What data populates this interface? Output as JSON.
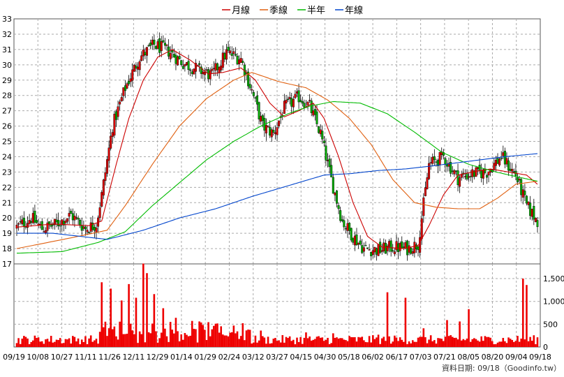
{
  "legend": [
    {
      "name": "月線",
      "color": "#cc0000"
    },
    {
      "name": "季線",
      "color": "#e06010"
    },
    {
      "name": "半年",
      "color": "#00bb00"
    },
    {
      "name": "年線",
      "color": "#0044cc"
    }
  ],
  "footer": "資料日期: 09/18（Goodinfo.tw）",
  "chart_data": [
    {
      "type": "candlestick",
      "ylim": [
        17,
        33
      ],
      "yticks": [
        17,
        18,
        19,
        20,
        21,
        22,
        23,
        24,
        25,
        26,
        27,
        28,
        29,
        30,
        31,
        32,
        33
      ],
      "xticks": [
        "09/19",
        "10/08",
        "10/27",
        "11/11",
        "11/26",
        "12/11",
        "12/29",
        "01/14",
        "01/29",
        "02/24",
        "03/12",
        "03/27",
        "04/15",
        "04/30",
        "05/18",
        "06/02",
        "06/17",
        "07/03",
        "07/21",
        "08/05",
        "08/20",
        "09/04",
        "09/18"
      ],
      "price_keypoints": [
        [
          0,
          19.4
        ],
        [
          8,
          20.0
        ],
        [
          14,
          19.3
        ],
        [
          22,
          19.6
        ],
        [
          30,
          20.2
        ],
        [
          38,
          19.3
        ],
        [
          44,
          19.6
        ],
        [
          47,
          21.5
        ],
        [
          53,
          26.0
        ],
        [
          60,
          28.5
        ],
        [
          68,
          30.5
        ],
        [
          76,
          31.3
        ],
        [
          84,
          30.9
        ],
        [
          92,
          30.1
        ],
        [
          100,
          29.7
        ],
        [
          108,
          29.3
        ],
        [
          116,
          30.8
        ],
        [
          124,
          30.4
        ],
        [
          130,
          28.3
        ],
        [
          136,
          26.0
        ],
        [
          142,
          25.5
        ],
        [
          148,
          27.2
        ],
        [
          156,
          27.9
        ],
        [
          162,
          27.3
        ],
        [
          168,
          25.5
        ],
        [
          174,
          22.5
        ],
        [
          180,
          19.8
        ],
        [
          186,
          18.8
        ],
        [
          192,
          18.0
        ],
        [
          200,
          17.9
        ],
        [
          208,
          18.1
        ],
        [
          216,
          18.0
        ],
        [
          222,
          18.3
        ],
        [
          228,
          23.5
        ],
        [
          236,
          24.0
        ],
        [
          244,
          22.6
        ],
        [
          252,
          22.9
        ],
        [
          260,
          23.0
        ],
        [
          268,
          24.0
        ],
        [
          276,
          22.8
        ],
        [
          282,
          20.8
        ],
        [
          288,
          19.8
        ]
      ],
      "series": [
        {
          "name": "月線",
          "keypoints": [
            [
              0,
              19.4
            ],
            [
              20,
              19.6
            ],
            [
              40,
              19.5
            ],
            [
              47,
              19.8
            ],
            [
              55,
              23.5
            ],
            [
              62,
              26.5
            ],
            [
              70,
              29.0
            ],
            [
              78,
              30.5
            ],
            [
              86,
              31.0
            ],
            [
              96,
              30.3
            ],
            [
              106,
              29.4
            ],
            [
              114,
              29.5
            ],
            [
              124,
              29.8
            ],
            [
              132,
              29.0
            ],
            [
              140,
              27.5
            ],
            [
              148,
              26.6
            ],
            [
              156,
              27.0
            ],
            [
              164,
              27.5
            ],
            [
              170,
              26.5
            ],
            [
              178,
              24.0
            ],
            [
              186,
              21.0
            ],
            [
              194,
              18.8
            ],
            [
              202,
              18.1
            ],
            [
              214,
              18.0
            ],
            [
              222,
              18.2
            ],
            [
              228,
              19.5
            ],
            [
              236,
              21.5
            ],
            [
              244,
              22.8
            ],
            [
              252,
              23.0
            ],
            [
              262,
              23.2
            ],
            [
              272,
              23.0
            ],
            [
              282,
              22.8
            ],
            [
              288,
              22.2
            ]
          ]
        },
        {
          "name": "季線",
          "keypoints": [
            [
              0,
              18.0
            ],
            [
              30,
              18.7
            ],
            [
              50,
              19.2
            ],
            [
              60,
              20.8
            ],
            [
              75,
              23.5
            ],
            [
              90,
              26.0
            ],
            [
              105,
              27.8
            ],
            [
              120,
              29.0
            ],
            [
              130,
              29.5
            ],
            [
              145,
              28.9
            ],
            [
              160,
              28.5
            ],
            [
              172,
              27.7
            ],
            [
              184,
              26.5
            ],
            [
              196,
              24.8
            ],
            [
              208,
              22.5
            ],
            [
              220,
              21.0
            ],
            [
              232,
              20.7
            ],
            [
              244,
              20.6
            ],
            [
              256,
              20.6
            ],
            [
              266,
              21.3
            ],
            [
              276,
              22.2
            ],
            [
              288,
              22.4
            ]
          ]
        },
        {
          "name": "半年",
          "keypoints": [
            [
              0,
              17.7
            ],
            [
              25,
              17.8
            ],
            [
              45,
              18.4
            ],
            [
              60,
              19.1
            ],
            [
              75,
              20.8
            ],
            [
              90,
              22.3
            ],
            [
              105,
              23.8
            ],
            [
              120,
              25.0
            ],
            [
              135,
              26.0
            ],
            [
              150,
              26.8
            ],
            [
              162,
              27.3
            ],
            [
              175,
              27.6
            ],
            [
              190,
              27.5
            ],
            [
              205,
              26.8
            ],
            [
              220,
              25.6
            ],
            [
              235,
              24.3
            ],
            [
              250,
              23.5
            ],
            [
              265,
              23.0
            ],
            [
              280,
              22.6
            ],
            [
              288,
              22.4
            ]
          ]
        },
        {
          "name": "年線",
          "keypoints": [
            [
              0,
              19.0
            ],
            [
              20,
              19.0
            ],
            [
              35,
              18.8
            ],
            [
              50,
              18.6
            ],
            [
              70,
              19.2
            ],
            [
              90,
              20.0
            ],
            [
              110,
              20.6
            ],
            [
              130,
              21.4
            ],
            [
              150,
              22.1
            ],
            [
              170,
              22.8
            ],
            [
              185,
              22.9
            ],
            [
              200,
              23.1
            ],
            [
              215,
              23.2
            ],
            [
              230,
              23.4
            ],
            [
              250,
              23.7
            ],
            [
              270,
              24.0
            ],
            [
              288,
              24.2
            ]
          ]
        }
      ]
    },
    {
      "type": "bar",
      "name": "volume",
      "ylim": [
        0,
        1700
      ],
      "yticks": [
        "0",
        "500",
        "1,000",
        "1,500"
      ],
      "spikes": [
        [
          47,
          1420
        ],
        [
          52,
          1280
        ],
        [
          58,
          1020
        ],
        [
          62,
          1380
        ],
        [
          66,
          1080
        ],
        [
          70,
          1830
        ],
        [
          72,
          1620
        ],
        [
          76,
          1160
        ],
        [
          81,
          850
        ],
        [
          88,
          640
        ],
        [
          101,
          560
        ],
        [
          120,
          470
        ],
        [
          135,
          360
        ],
        [
          160,
          320
        ],
        [
          175,
          300
        ],
        [
          200,
          270
        ],
        [
          205,
          1200
        ],
        [
          215,
          1080
        ],
        [
          225,
          410
        ],
        [
          238,
          590
        ],
        [
          245,
          560
        ],
        [
          250,
          830
        ],
        [
          280,
          1500
        ],
        [
          282,
          1360
        ]
      ]
    }
  ]
}
